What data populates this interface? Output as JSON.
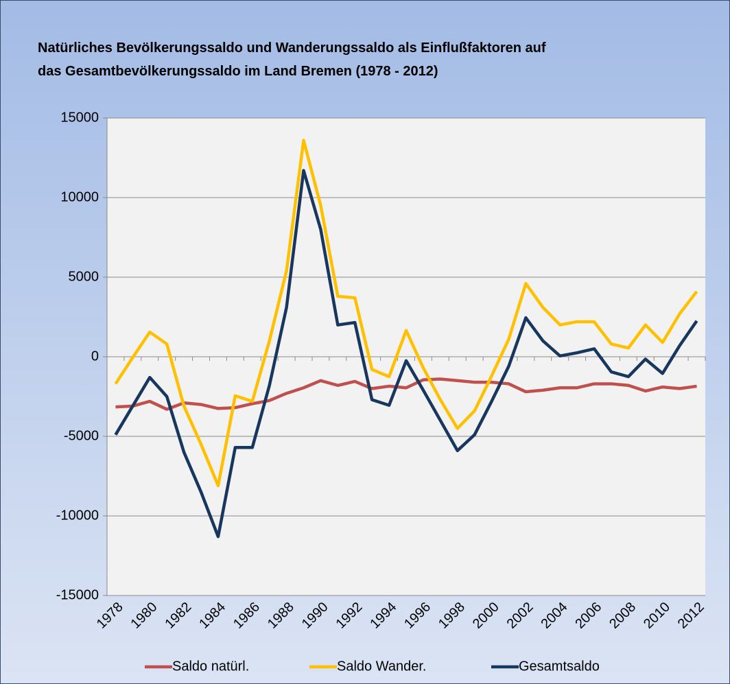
{
  "chart_data": {
    "type": "line",
    "title": "Natürliches Bevölkerungssaldo und Wanderungssaldo als Einflußfaktoren auf das Gesamtbevölkerungssaldo im Land Bremen (1978 - 2012)",
    "categories": [
      "1978",
      null,
      "1980",
      null,
      "1982",
      null,
      "1984",
      null,
      "1986",
      null,
      "1988",
      null,
      "1990",
      null,
      "1992",
      null,
      "1994",
      null,
      "1996",
      null,
      "1998",
      null,
      "2000",
      null,
      "2002",
      null,
      "2004",
      null,
      "2006",
      null,
      "2008",
      null,
      "2010",
      null,
      "2012"
    ],
    "series": [
      {
        "name": "Saldo natürl.",
        "color": "#c0504d",
        "values": [
          -3150,
          -3100,
          -2800,
          -3300,
          -2900,
          -3000,
          -3250,
          -3200,
          -2950,
          -2750,
          -2300,
          -1950,
          -1500,
          -1800,
          -1550,
          -2000,
          -1850,
          -1950,
          -1450,
          -1400,
          -1500,
          -1600,
          -1600,
          -1700,
          -2200,
          -2100,
          -1950,
          -1950,
          -1700,
          -1700,
          -1800,
          -2150,
          -1900,
          -2000,
          -1850
        ]
      },
      {
        "name": "Saldo Wander.",
        "color": "#ffc000",
        "values": [
          -1700,
          -50,
          1550,
          800,
          -3100,
          -5500,
          -8100,
          -2450,
          -2800,
          1000,
          5400,
          13600,
          9500,
          3800,
          3700,
          -800,
          -1250,
          1650,
          -700,
          -2700,
          -4500,
          -3400,
          -1200,
          1100,
          4600,
          3100,
          2000,
          2200,
          2200,
          800,
          550,
          2000,
          900,
          2700,
          4100
        ]
      },
      {
        "name": "Gesamtsaldo",
        "color": "#17375e",
        "values": [
          -4900,
          -3100,
          -1300,
          -2500,
          -6000,
          -8500,
          -11300,
          -5700,
          -5700,
          -1800,
          3100,
          11700,
          8000,
          2000,
          2150,
          -2700,
          -3050,
          -250,
          -2100,
          -4000,
          -5900,
          -4900,
          -2800,
          -600,
          2450,
          1000,
          50,
          250,
          500,
          -950,
          -1250,
          -150,
          -1050,
          700,
          2250
        ]
      }
    ],
    "ylim": [
      -15000,
      15000
    ],
    "yticks": [
      -15000,
      -10000,
      -5000,
      0,
      5000,
      10000,
      15000
    ],
    "grid": true
  }
}
